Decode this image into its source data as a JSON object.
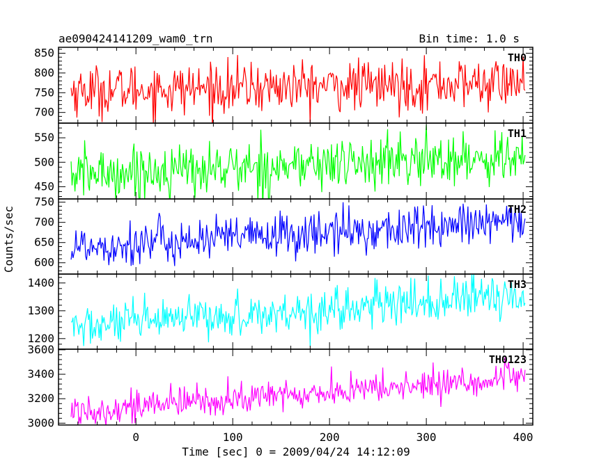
{
  "header": {
    "title": "ae090424141209_wam0_trn",
    "bin_time": "Bin time: 1.0 s"
  },
  "axes": {
    "xlabel": "Time [sec] 0 = 2009/04/24 14:12:09",
    "ylabel": "Counts/sec"
  },
  "chart_data": {
    "type": "line",
    "title": "ae090424141209_wam0_trn",
    "subtitle": "Bin time: 1.0 s",
    "xlabel": "Time [sec] 0 = 2009/04/24 14:12:09",
    "ylabel": "Counts/sec",
    "xlim": [
      -80,
      410
    ],
    "xticks": [
      0,
      100,
      200,
      300,
      400
    ],
    "x_start": -67,
    "x_end": 402,
    "x_step": 1,
    "grid": false,
    "legend": "none",
    "panels": [
      {
        "name": "TH0",
        "color": "#ff0000",
        "ylim": [
          673,
          865
        ],
        "yticks": [
          700,
          750,
          800,
          850
        ],
        "mean_start": 755,
        "mean_end": 775,
        "noise": 32
      },
      {
        "name": "TH1",
        "color": "#00ff00",
        "ylim": [
          425,
          580
        ],
        "yticks": [
          450,
          500,
          550
        ],
        "mean_start": 475,
        "mean_end": 512,
        "noise": 27
      },
      {
        "name": "TH2",
        "color": "#0000ff",
        "ylim": [
          572,
          758
        ],
        "yticks": [
          600,
          650,
          700,
          750
        ],
        "mean_start": 640,
        "mean_end": 700,
        "noise": 28
      },
      {
        "name": "TH3",
        "color": "#00ffff",
        "ylim": [
          1162,
          1432
        ],
        "yticks": [
          1200,
          1300,
          1400
        ],
        "mean_start": 1240,
        "mean_end": 1355,
        "noise": 38
      },
      {
        "name": "TH0123",
        "color": "#ff00ff",
        "ylim": [
          2985,
          3605
        ],
        "yticks": [
          3000,
          3200,
          3400,
          3600
        ],
        "mean_start": 3100,
        "mean_end": 3370,
        "noise": 65
      }
    ]
  }
}
